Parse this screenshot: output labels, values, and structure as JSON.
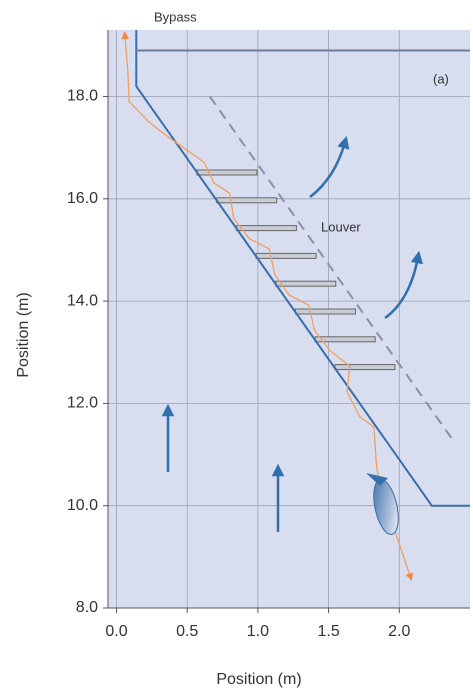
{
  "chart_data": {
    "type": "line",
    "annotations": [
      "Bypass",
      "Louver",
      "(a)"
    ],
    "x_label": "Position (m)",
    "y_label": "Position (m)",
    "xlim": [
      -0.06,
      2.5
    ],
    "ylim": [
      8,
      19.3
    ],
    "xticks": [
      {
        "value": 0,
        "label": "0.0"
      },
      {
        "value": 0.5,
        "label": "0.5"
      },
      {
        "value": 1,
        "label": "1.0"
      },
      {
        "value": 1.5,
        "label": "1.5"
      },
      {
        "value": 2,
        "label": "2.0"
      }
    ],
    "yticks": [
      {
        "value": 8,
        "label": "8.0"
      },
      {
        "value": 10,
        "label": "10.0"
      },
      {
        "value": 12,
        "label": "12.0"
      },
      {
        "value": 14,
        "label": "14.0"
      },
      {
        "value": 16,
        "label": "16.0"
      },
      {
        "value": 18,
        "label": "18.0"
      }
    ],
    "grid": true,
    "series": [
      {
        "color": "#3a6ea8",
        "x": [
          0.14,
          0.14,
          2.23,
          2.5
        ],
        "values": [
          19.3,
          18.2,
          10.0,
          10.0
        ]
      },
      {
        "color": "#6d7f9c",
        "x": [
          0.14,
          2.5
        ],
        "values": [
          18.9,
          18.9
        ]
      },
      {
        "color": "#8a90a8",
        "dashed": true,
        "x": [
          0.66,
          2.39
        ],
        "values": [
          18.0,
          11.24
        ]
      },
      {
        "color": "#f0a060",
        "x": [
          2.08,
          2.0,
          1.89,
          1.84,
          1.82,
          1.72,
          1.63,
          1.65,
          1.51,
          1.4,
          1.36,
          1.22,
          1.12,
          1.08,
          0.94,
          0.83,
          0.8,
          0.69,
          0.62,
          0.52,
          0.37,
          0.23,
          0.09,
          0.08,
          0.06
        ],
        "values": [
          8.6,
          9.25,
          10.15,
          10.74,
          11.54,
          11.74,
          12.23,
          12.73,
          13.03,
          13.43,
          13.92,
          14.12,
          14.52,
          15.02,
          15.22,
          15.61,
          16.11,
          16.31,
          16.71,
          16.91,
          17.2,
          17.5,
          17.9,
          18.5,
          19.2
        ]
      }
    ]
  }
}
